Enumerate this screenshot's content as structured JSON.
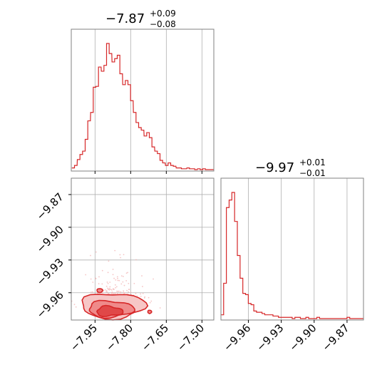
{
  "colors": {
    "accent": "#d62728",
    "grid": "#b0b0b0",
    "axis": "#808080",
    "scatter": "#f2b6b6",
    "fill_light": "#f7c6c6",
    "fill_mid": "#ef8a8a",
    "fill_dark": "#e04848"
  },
  "chart_data": [
    {
      "type": "histogram",
      "panel": "marginal-x",
      "title": {
        "median": "−7.87",
        "upper": "+0.09",
        "lower": "−0.08"
      },
      "xlim": [
        -8.05,
        -7.45
      ],
      "x_ticks": [
        -7.95,
        -7.8,
        -7.65,
        -7.5
      ],
      "grid": true,
      "bin_centers": [
        -8.042,
        -8.031,
        -8.019,
        -8.008,
        -7.997,
        -7.986,
        -7.975,
        -7.963,
        -7.952,
        -7.941,
        -7.93,
        -7.918,
        -7.907,
        -7.896,
        -7.885,
        -7.873,
        -7.862,
        -7.851,
        -7.84,
        -7.828,
        -7.817,
        -7.806,
        -7.795,
        -7.783,
        -7.772,
        -7.761,
        -7.75,
        -7.738,
        -7.727,
        -7.716,
        -7.705,
        -7.693,
        -7.682,
        -7.671,
        -7.66,
        -7.648,
        -7.637,
        -7.626,
        -7.615,
        -7.603,
        -7.592,
        -7.581,
        -7.57,
        -7.558,
        -7.547,
        -7.536,
        -7.525,
        -7.513,
        -7.502,
        -7.491,
        -7.48,
        -7.468,
        -7.457
      ],
      "counts": [
        2,
        5,
        12,
        18,
        22,
        36,
        58,
        68,
        98,
        99,
        122,
        117,
        124,
        150,
        138,
        128,
        132,
        136,
        114,
        101,
        106,
        101,
        82,
        68,
        56,
        50,
        47,
        40,
        44,
        38,
        27,
        22,
        19,
        11,
        8,
        5,
        8,
        5,
        4,
        2,
        2,
        1,
        1,
        2,
        1,
        1,
        0,
        1,
        0,
        1,
        0,
        0,
        0
      ]
    },
    {
      "type": "scatter",
      "panel": "joint",
      "xlim": [
        -8.05,
        -7.45
      ],
      "ylim": [
        -9.985,
        -9.855
      ],
      "x_ticks": [
        -7.95,
        -7.8,
        -7.65,
        -7.5
      ],
      "y_ticks": [
        -9.87,
        -9.9,
        -9.93,
        -9.96
      ],
      "grid": true,
      "contour_levels": 3,
      "x_tick_labels": [
        "−7.95",
        "−7.80",
        "−7.65",
        "−7.50"
      ],
      "y_tick_labels": [
        "−9.87",
        "−9.90",
        "−9.93",
        "−9.96"
      ]
    },
    {
      "type": "histogram",
      "panel": "marginal-y",
      "title": {
        "median": "−9.97",
        "upper": "+0.01",
        "lower": "−0.01"
      },
      "xlim": [
        -9.985,
        -9.855
      ],
      "x_ticks": [
        -9.96,
        -9.93,
        -9.9,
        -9.87
      ],
      "x_tick_labels": [
        "−9.96",
        "−9.93",
        "−9.90",
        "−9.87"
      ],
      "grid": true,
      "bin_centers": [
        -9.9838,
        -9.9813,
        -9.9788,
        -9.9763,
        -9.9738,
        -9.9713,
        -9.9688,
        -9.9663,
        -9.9638,
        -9.9613,
        -9.9588,
        -9.9563,
        -9.9538,
        -9.9513,
        -9.9488,
        -9.9463,
        -9.9438,
        -9.9413,
        -9.9388,
        -9.9363,
        -9.9338,
        -9.9313,
        -9.9288,
        -9.9263,
        -9.9238,
        -9.9213,
        -9.9188,
        -9.9163,
        -9.9138,
        -9.9113,
        -9.9088,
        -9.9063,
        -9.9038,
        -9.9013,
        -9.8988,
        -9.8963,
        -9.8938,
        -9.8913,
        -9.8888,
        -9.8863,
        -9.8838,
        -9.8813,
        -9.8788,
        -9.8763,
        -9.8738,
        -9.8713,
        -9.8688,
        -9.8663,
        -9.8638,
        -9.8613,
        -9.8588,
        -9.8563
      ],
      "counts": [
        3,
        28,
        88,
        94,
        100,
        77,
        50,
        32,
        20,
        19,
        12,
        11,
        6,
        5,
        5,
        4,
        3,
        3,
        3,
        2,
        2,
        1,
        1,
        1,
        1,
        1,
        0,
        1,
        1,
        0,
        0,
        1,
        0,
        0,
        0,
        1,
        0,
        0,
        0,
        0,
        0,
        0,
        0,
        0,
        0,
        0,
        1,
        0,
        0,
        0,
        0,
        0
      ]
    }
  ]
}
